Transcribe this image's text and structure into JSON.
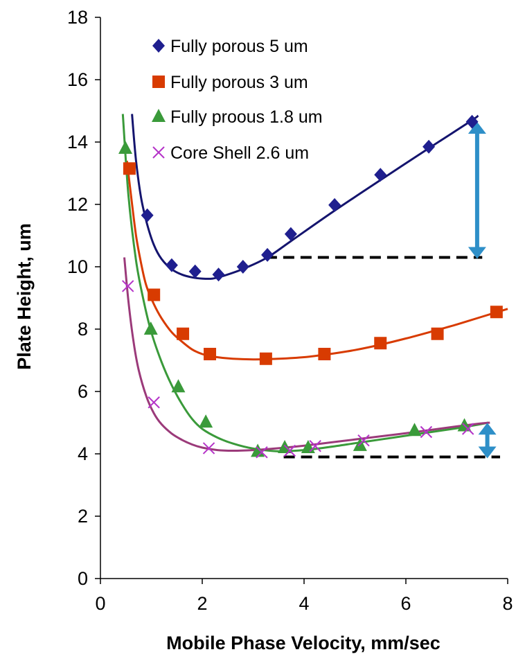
{
  "chart_data": {
    "type": "scatter",
    "xlabel": "Mobile  Phase Velocity, mm/sec",
    "ylabel": "Plate Height, um",
    "xlim": [
      0,
      8
    ],
    "ylim": [
      0,
      18
    ],
    "xticks": [
      "0",
      "2",
      "4",
      "6",
      "8"
    ],
    "yticks": [
      "0",
      "2",
      "4",
      "6",
      "8",
      "10",
      "12",
      "14",
      "16",
      "18"
    ],
    "grid": false,
    "legend_position": "top-left",
    "series": [
      {
        "name": "Fully porous 5 um",
        "marker": "diamond",
        "color": "#1F1F8F",
        "line_color": "#14146E",
        "points": [
          [
            0.92,
            11.65
          ],
          [
            1.4,
            10.05
          ],
          [
            1.86,
            9.85
          ],
          [
            2.32,
            9.75
          ],
          [
            2.8,
            10.0
          ],
          [
            3.28,
            10.38
          ],
          [
            3.74,
            11.05
          ],
          [
            4.6,
            11.98
          ],
          [
            5.5,
            12.95
          ],
          [
            6.45,
            13.85
          ],
          [
            7.3,
            14.65
          ]
        ],
        "fit": [
          [
            0.62,
            14.9
          ],
          [
            0.7,
            13.4
          ],
          [
            0.8,
            12.2
          ],
          [
            0.92,
            11.35
          ],
          [
            1.05,
            10.7
          ],
          [
            1.2,
            10.25
          ],
          [
            1.4,
            9.92
          ],
          [
            1.6,
            9.75
          ],
          [
            1.8,
            9.66
          ],
          [
            2.0,
            9.62
          ],
          [
            2.2,
            9.62
          ],
          [
            2.4,
            9.7
          ],
          [
            2.8,
            9.93
          ],
          [
            3.28,
            10.3
          ],
          [
            3.74,
            10.82
          ],
          [
            4.6,
            11.8
          ],
          [
            5.5,
            12.78
          ],
          [
            6.45,
            13.8
          ],
          [
            7.3,
            14.7
          ],
          [
            7.42,
            14.85
          ]
        ]
      },
      {
        "name": "Fully porous 3 um",
        "marker": "square",
        "color": "#D83B01",
        "line_color": "#D83B01",
        "points": [
          [
            0.57,
            13.15
          ],
          [
            1.05,
            9.1
          ],
          [
            1.62,
            7.85
          ],
          [
            2.15,
            7.2
          ],
          [
            3.25,
            7.05
          ],
          [
            4.4,
            7.2
          ],
          [
            5.5,
            7.55
          ],
          [
            6.62,
            7.85
          ],
          [
            7.78,
            8.55
          ]
        ],
        "fit": [
          [
            0.52,
            13.4
          ],
          [
            0.6,
            12.3
          ],
          [
            0.7,
            11.0
          ],
          [
            0.8,
            10.1
          ],
          [
            0.9,
            9.4
          ],
          [
            1.05,
            8.8
          ],
          [
            1.2,
            8.35
          ],
          [
            1.4,
            7.9
          ],
          [
            1.6,
            7.6
          ],
          [
            1.8,
            7.35
          ],
          [
            2.0,
            7.2
          ],
          [
            2.2,
            7.12
          ],
          [
            2.6,
            7.05
          ],
          [
            3.0,
            7.03
          ],
          [
            3.5,
            7.05
          ],
          [
            4.0,
            7.1
          ],
          [
            4.5,
            7.2
          ],
          [
            5.0,
            7.33
          ],
          [
            5.5,
            7.5
          ],
          [
            6.0,
            7.7
          ],
          [
            6.5,
            7.92
          ],
          [
            7.0,
            8.15
          ],
          [
            7.5,
            8.4
          ],
          [
            8.0,
            8.65
          ]
        ]
      },
      {
        "name": "Fully proous 1.8 um",
        "marker": "triangle",
        "color": "#3A9A3A",
        "line_color": "#3A9A3A",
        "points": [
          [
            0.49,
            13.8
          ],
          [
            0.99,
            8.0
          ],
          [
            1.53,
            6.15
          ],
          [
            2.07,
            5.02
          ],
          [
            3.09,
            4.08
          ],
          [
            3.62,
            4.2
          ],
          [
            4.08,
            4.2
          ],
          [
            5.1,
            4.27
          ],
          [
            6.17,
            4.75
          ],
          [
            7.15,
            4.9
          ]
        ],
        "fit": [
          [
            0.44,
            14.9
          ],
          [
            0.55,
            12.3
          ],
          [
            0.7,
            10.2
          ],
          [
            0.85,
            8.9
          ],
          [
            1.0,
            7.9
          ],
          [
            1.2,
            6.95
          ],
          [
            1.4,
            6.2
          ],
          [
            1.6,
            5.6
          ],
          [
            1.8,
            5.12
          ],
          [
            2.0,
            4.8
          ],
          [
            2.3,
            4.52
          ],
          [
            2.6,
            4.33
          ],
          [
            3.0,
            4.17
          ],
          [
            3.5,
            4.08
          ],
          [
            4.0,
            4.12
          ],
          [
            4.5,
            4.22
          ],
          [
            5.0,
            4.34
          ],
          [
            5.5,
            4.46
          ],
          [
            6.0,
            4.58
          ],
          [
            6.5,
            4.7
          ],
          [
            7.0,
            4.82
          ],
          [
            7.4,
            4.93
          ],
          [
            7.62,
            5.0
          ]
        ]
      },
      {
        "name": "Core Shell 2.6 um",
        "marker": "x",
        "color": "#B533C8",
        "line_color": "#9B3A7A",
        "points": [
          [
            0.54,
            9.38
          ],
          [
            1.05,
            5.65
          ],
          [
            2.13,
            4.18
          ],
          [
            3.17,
            4.05
          ],
          [
            3.72,
            4.1
          ],
          [
            4.22,
            4.25
          ],
          [
            5.17,
            4.43
          ],
          [
            6.4,
            4.7
          ],
          [
            7.22,
            4.8
          ]
        ],
        "fit": [
          [
            0.47,
            10.3
          ],
          [
            0.55,
            8.9
          ],
          [
            0.65,
            7.6
          ],
          [
            0.75,
            6.7
          ],
          [
            0.9,
            5.85
          ],
          [
            1.05,
            5.3
          ],
          [
            1.2,
            4.95
          ],
          [
            1.4,
            4.65
          ],
          [
            1.6,
            4.45
          ],
          [
            1.8,
            4.3
          ],
          [
            2.0,
            4.2
          ],
          [
            2.3,
            4.12
          ],
          [
            2.6,
            4.1
          ],
          [
            3.0,
            4.12
          ],
          [
            3.5,
            4.18
          ],
          [
            4.0,
            4.26
          ],
          [
            4.5,
            4.36
          ],
          [
            5.0,
            4.46
          ],
          [
            5.5,
            4.56
          ],
          [
            6.0,
            4.66
          ],
          [
            6.5,
            4.77
          ],
          [
            7.0,
            4.88
          ],
          [
            7.4,
            4.96
          ],
          [
            7.65,
            5.0
          ]
        ]
      }
    ],
    "annotations": {
      "dashed_lines": [
        {
          "x1": 3.25,
          "x2": 7.5,
          "y": 10.3
        },
        {
          "x1": 3.6,
          "x2": 7.85,
          "y": 3.9
        }
      ],
      "arrows": [
        {
          "x": 7.4,
          "y1": 10.3,
          "y2": 14.6
        },
        {
          "x": 7.6,
          "y1": 3.9,
          "y2": 4.95
        }
      ]
    }
  }
}
